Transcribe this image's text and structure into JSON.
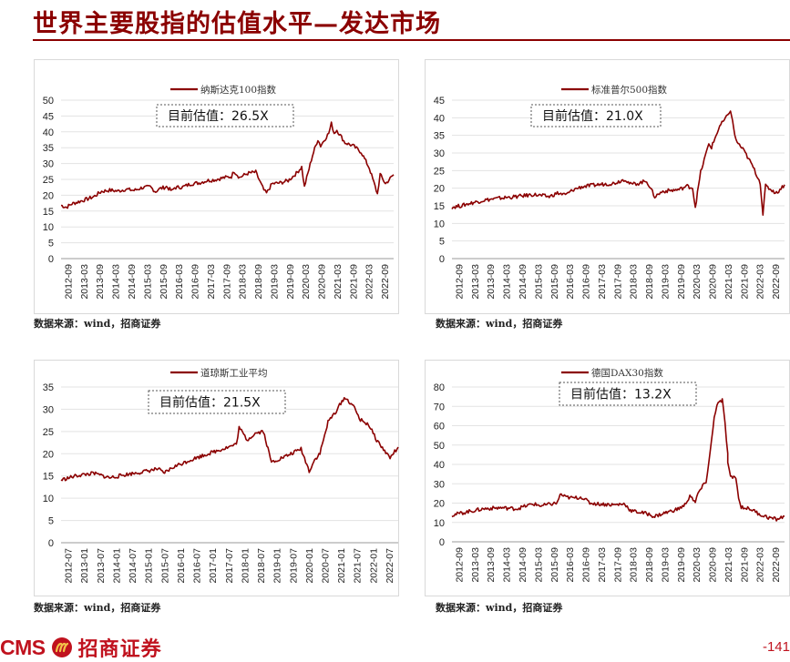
{
  "page": {
    "title": "世界主要股指的估值水平—发达市场",
    "page_number": "-141",
    "logo_text": "CMS",
    "logo_cn": "招商证券",
    "accent_color": "#8b0000",
    "brand_color": "#c0121e"
  },
  "chart_data": [
    {
      "type": "line",
      "title": "",
      "series_name": "纳斯达克100指数",
      "callout": "目前估值：26.5X",
      "source": "数据来源：wind，招商证券",
      "ylim": [
        0,
        50
      ],
      "yticks": [
        0,
        5,
        10,
        15,
        20,
        25,
        30,
        35,
        40,
        45,
        50
      ],
      "xlim": [
        "2012-09",
        "2022-12"
      ],
      "xticks": [
        "2012-09",
        "2013-03",
        "2013-09",
        "2014-03",
        "2014-09",
        "2015-03",
        "2015-09",
        "2016-03",
        "2016-09",
        "2017-03",
        "2017-09",
        "2018-03",
        "2018-09",
        "2019-03",
        "2019-09",
        "2020-03",
        "2020-09",
        "2021-03",
        "2021-09",
        "2022-03",
        "2022-09"
      ],
      "series": [
        {
          "name": "纳斯达克100指数",
          "color": "#8b0000",
          "points": [
            [
              "2012-09",
              16.8
            ],
            [
              "2012-11",
              16.2
            ],
            [
              "2013-01",
              17.3
            ],
            [
              "2013-03",
              17.8
            ],
            [
              "2013-06",
              18.6
            ],
            [
              "2013-09",
              19.5
            ],
            [
              "2013-12",
              21.2
            ],
            [
              "2014-03",
              21.6
            ],
            [
              "2014-06",
              21.3
            ],
            [
              "2014-09",
              21.9
            ],
            [
              "2014-12",
              21.5
            ],
            [
              "2015-03",
              22.4
            ],
            [
              "2015-06",
              22.6
            ],
            [
              "2015-08",
              21.1
            ],
            [
              "2015-09",
              21.9
            ],
            [
              "2015-12",
              22.7
            ],
            [
              "2016-02",
              21.3
            ],
            [
              "2016-03",
              22.4
            ],
            [
              "2016-06",
              22.6
            ],
            [
              "2016-09",
              23.6
            ],
            [
              "2016-12",
              23.9
            ],
            [
              "2017-03",
              24.6
            ],
            [
              "2017-06",
              24.9
            ],
            [
              "2017-09",
              25.5
            ],
            [
              "2017-12",
              25.9
            ],
            [
              "2018-01",
              27.6
            ],
            [
              "2018-03",
              25.6
            ],
            [
              "2018-06",
              26.9
            ],
            [
              "2018-09",
              27.3
            ],
            [
              "2018-12",
              21.6
            ],
            [
              "2019-01",
              20.6
            ],
            [
              "2019-03",
              23.6
            ],
            [
              "2019-06",
              23.9
            ],
            [
              "2019-09",
              24.6
            ],
            [
              "2019-12",
              26.9
            ],
            [
              "2020-02",
              28.9
            ],
            [
              "2020-03",
              22.6
            ],
            [
              "2020-06",
              32.6
            ],
            [
              "2020-08",
              37.6
            ],
            [
              "2020-09",
              35.6
            ],
            [
              "2020-12",
              39.6
            ],
            [
              "2021-01",
              42.6
            ],
            [
              "2021-02",
              39.6
            ],
            [
              "2021-03",
              40.6
            ],
            [
              "2021-06",
              36.6
            ],
            [
              "2021-09",
              35.6
            ],
            [
              "2021-12",
              33.6
            ],
            [
              "2022-03",
              28.6
            ],
            [
              "2022-06",
              20.4
            ],
            [
              "2022-07",
              26.6
            ],
            [
              "2022-09",
              23.6
            ],
            [
              "2022-12",
              26.5
            ]
          ]
        }
      ]
    },
    {
      "type": "line",
      "title": "",
      "series_name": "标准普尔500指数",
      "callout": "目前估值：21.0X",
      "source": "数据来源：wind，招商证券",
      "ylim": [
        0,
        45
      ],
      "yticks": [
        0,
        5,
        10,
        15,
        20,
        25,
        30,
        35,
        40,
        45
      ],
      "xlim": [
        "2012-09",
        "2022-12"
      ],
      "xticks": [
        "2012-09",
        "2013-03",
        "2013-09",
        "2014-03",
        "2014-09",
        "2015-03",
        "2015-09",
        "2016-03",
        "2016-09",
        "2017-03",
        "2017-09",
        "2018-03",
        "2018-09",
        "2019-03",
        "2019-09",
        "2020-03",
        "2020-09",
        "2021-03",
        "2021-09",
        "2022-03",
        "2022-09"
      ],
      "series": [
        {
          "name": "标准普尔500指数",
          "color": "#8b0000",
          "points": [
            [
              "2012-09",
              14.6
            ],
            [
              "2013-01",
              15.1
            ],
            [
              "2013-03",
              15.6
            ],
            [
              "2013-09",
              16.6
            ],
            [
              "2014-03",
              17.2
            ],
            [
              "2014-09",
              17.6
            ],
            [
              "2015-03",
              18.2
            ],
            [
              "2015-09",
              17.6
            ],
            [
              "2015-12",
              18.6
            ],
            [
              "2016-03",
              18.1
            ],
            [
              "2016-06",
              19.6
            ],
            [
              "2016-09",
              20.4
            ],
            [
              "2017-03",
              21.0
            ],
            [
              "2017-09",
              21.4
            ],
            [
              "2018-01",
              22.6
            ],
            [
              "2018-03",
              21.1
            ],
            [
              "2018-06",
              21.4
            ],
            [
              "2018-09",
              22.1
            ],
            [
              "2018-12",
              17.6
            ],
            [
              "2019-03",
              19.1
            ],
            [
              "2019-09",
              19.6
            ],
            [
              "2019-12",
              20.6
            ],
            [
              "2020-02",
              20.1
            ],
            [
              "2020-03",
              14.6
            ],
            [
              "2020-05",
              24.6
            ],
            [
              "2020-08",
              32.6
            ],
            [
              "2020-09",
              31.6
            ],
            [
              "2020-12",
              37.6
            ],
            [
              "2021-03",
              40.6
            ],
            [
              "2021-04",
              42.3
            ],
            [
              "2021-06",
              33.6
            ],
            [
              "2021-09",
              30.6
            ],
            [
              "2021-12",
              26.6
            ],
            [
              "2022-03",
              21.6
            ],
            [
              "2022-04",
              12.6
            ],
            [
              "2022-05",
              20.6
            ],
            [
              "2022-09",
              18.6
            ],
            [
              "2022-12",
              21.0
            ]
          ]
        }
      ]
    },
    {
      "type": "line",
      "title": "",
      "series_name": "道琼斯工业平均",
      "callout": "目前估值：21.5X",
      "source": "数据来源：wind，招商证券",
      "ylim": [
        0,
        35
      ],
      "yticks": [
        0,
        5,
        10,
        15,
        20,
        25,
        30,
        35
      ],
      "xlim": [
        "2012-07",
        "2022-12"
      ],
      "xticks": [
        "2012-07",
        "2013-01",
        "2013-07",
        "2014-01",
        "2014-07",
        "2015-01",
        "2015-07",
        "2016-01",
        "2016-07",
        "2017-01",
        "2017-07",
        "2018-01",
        "2018-07",
        "2019-01",
        "2019-07",
        "2020-01",
        "2020-07",
        "2021-01",
        "2021-07",
        "2022-01",
        "2022-07"
      ],
      "series": [
        {
          "name": "道琼斯工业平均",
          "color": "#8b0000",
          "points": [
            [
              "2012-07",
              14.1
            ],
            [
              "2013-01",
              15.1
            ],
            [
              "2013-07",
              15.6
            ],
            [
              "2014-01",
              14.6
            ],
            [
              "2014-07",
              15.3
            ],
            [
              "2015-01",
              15.9
            ],
            [
              "2015-07",
              16.6
            ],
            [
              "2015-09",
              15.6
            ],
            [
              "2016-01",
              17.1
            ],
            [
              "2016-07",
              18.6
            ],
            [
              "2017-01",
              19.9
            ],
            [
              "2017-07",
              21.1
            ],
            [
              "2017-12",
              22.1
            ],
            [
              "2018-01",
              25.9
            ],
            [
              "2018-04",
              23.1
            ],
            [
              "2018-07",
              24.6
            ],
            [
              "2018-10",
              25.1
            ],
            [
              "2019-01",
              18.1
            ],
            [
              "2019-07",
              19.6
            ],
            [
              "2019-12",
              21.1
            ],
            [
              "2020-03",
              16.1
            ],
            [
              "2020-05",
              18.6
            ],
            [
              "2020-07",
              20.1
            ],
            [
              "2020-10",
              27.1
            ],
            [
              "2021-01",
              29.6
            ],
            [
              "2021-04",
              32.6
            ],
            [
              "2021-07",
              31.1
            ],
            [
              "2021-10",
              27.6
            ],
            [
              "2022-01",
              26.6
            ],
            [
              "2022-04",
              23.1
            ],
            [
              "2022-07",
              20.6
            ],
            [
              "2022-09",
              19.1
            ],
            [
              "2022-12",
              21.5
            ]
          ]
        }
      ]
    },
    {
      "type": "line",
      "title": "",
      "series_name": "德国DAX30指数",
      "callout": "目前估值：13.2X",
      "source": "数据来源：wind，招商证券",
      "ylim": [
        0,
        80
      ],
      "yticks": [
        0,
        10,
        20,
        30,
        40,
        50,
        60,
        70,
        80
      ],
      "xlim": [
        "2012-09",
        "2022-12"
      ],
      "xticks": [
        "2012-09",
        "2013-03",
        "2013-09",
        "2014-03",
        "2014-09",
        "2015-03",
        "2015-09",
        "2016-03",
        "2016-09",
        "2017-03",
        "2017-09",
        "2018-03",
        "2018-09",
        "2019-03",
        "2019-09",
        "2020-03",
        "2020-09",
        "2021-03",
        "2021-09",
        "2022-03",
        "2022-09"
      ],
      "series": [
        {
          "name": "德国DAX30指数",
          "color": "#8b0000",
          "points": [
            [
              "2012-09",
              13.8
            ],
            [
              "2013-03",
              15.6
            ],
            [
              "2013-09",
              17.1
            ],
            [
              "2014-03",
              17.6
            ],
            [
              "2014-09",
              17.1
            ],
            [
              "2015-03",
              19.6
            ],
            [
              "2015-06",
              18.6
            ],
            [
              "2015-12",
              20.1
            ],
            [
              "2016-01",
              24.6
            ],
            [
              "2016-03",
              23.1
            ],
            [
              "2016-06",
              22.6
            ],
            [
              "2016-09",
              23.1
            ],
            [
              "2016-12",
              20.1
            ],
            [
              "2017-03",
              19.6
            ],
            [
              "2017-09",
              19.1
            ],
            [
              "2018-01",
              19.6
            ],
            [
              "2018-03",
              16.1
            ],
            [
              "2018-09",
              14.6
            ],
            [
              "2018-12",
              13.1
            ],
            [
              "2019-03",
              14.6
            ],
            [
              "2019-09",
              17.1
            ],
            [
              "2019-12",
              20.1
            ],
            [
              "2020-01",
              24.6
            ],
            [
              "2020-03",
              20.1
            ],
            [
              "2020-04",
              25.1
            ],
            [
              "2020-07",
              31.1
            ],
            [
              "2020-08",
              41.1
            ],
            [
              "2020-09",
              52.1
            ],
            [
              "2020-10",
              64.1
            ],
            [
              "2020-11",
              71.1
            ],
            [
              "2021-01",
              73.1
            ],
            [
              "2021-02",
              61.1
            ],
            [
              "2021-03",
              45.1
            ],
            [
              "2021-03",
              41.1
            ],
            [
              "2021-04",
              33.1
            ],
            [
              "2021-06",
              33.6
            ],
            [
              "2021-07",
              22.1
            ],
            [
              "2021-08",
              18.1
            ],
            [
              "2021-12",
              16.6
            ],
            [
              "2022-03",
              14.1
            ],
            [
              "2022-06",
              12.6
            ],
            [
              "2022-09",
              11.6
            ],
            [
              "2022-12",
              13.2
            ]
          ]
        }
      ]
    }
  ]
}
